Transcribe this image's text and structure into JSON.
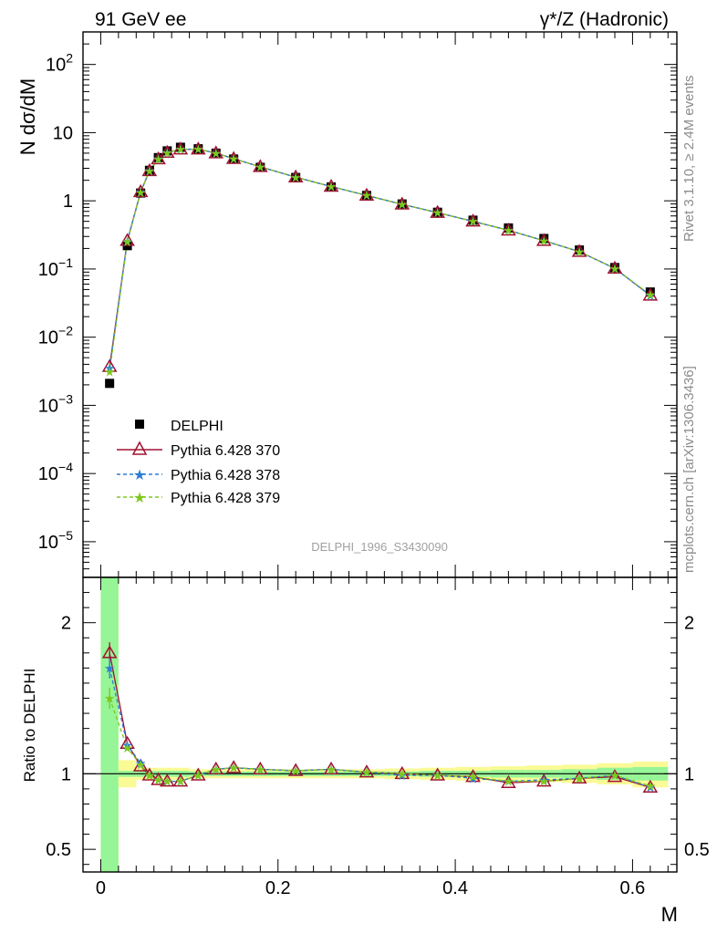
{
  "header": {
    "left_title": "91 GeV ee",
    "right_title": "γ*/Z (Hadronic)"
  },
  "side_text": {
    "rivet": "Rivet 3.1.10, ≥ 2.4M events",
    "mcplots": "mcplots.cern.ch [arXiv:1306.3436]"
  },
  "analysis_label": "DELPHI_1996_S3430090",
  "colors": {
    "data": "#000000",
    "py370": "#a01030",
    "py378": "#2a7fd4",
    "py379": "#7ec81e",
    "band_green": "#96f596",
    "band_yellow": "#fafa96"
  },
  "chart_data": [
    {
      "type": "scatter",
      "ylabel": "N dσ/dM",
      "yscale": "log",
      "ylim": [
        3e-06,
        300
      ],
      "xlim": [
        -0.02,
        0.65
      ],
      "ytick_labels": [
        {
          "value": 100,
          "mant": "10",
          "exp": "2"
        },
        {
          "value": 10,
          "mant": "10",
          "exp": ""
        },
        {
          "value": 1,
          "mant": "1",
          "exp": ""
        },
        {
          "value": 0.1,
          "mant": "10",
          "exp": "−1"
        },
        {
          "value": 0.01,
          "mant": "10",
          "exp": "−2"
        },
        {
          "value": 0.001,
          "mant": "10",
          "exp": "−3"
        },
        {
          "value": 0.0001,
          "mant": "10",
          "exp": "−4"
        },
        {
          "value": 1e-05,
          "mant": "10",
          "exp": "−5"
        }
      ],
      "legend": {
        "position": "left-center",
        "entries": [
          {
            "label": "DELPHI",
            "marker": "square"
          },
          {
            "label": "Pythia 6.428 370",
            "marker": "triangle"
          },
          {
            "label": "Pythia 6.428 378",
            "marker": "star"
          },
          {
            "label": "Pythia 6.428 379",
            "marker": "star"
          }
        ]
      },
      "x": [
        0.01,
        0.03,
        0.045,
        0.055,
        0.065,
        0.075,
        0.09,
        0.11,
        0.13,
        0.15,
        0.18,
        0.22,
        0.26,
        0.3,
        0.34,
        0.38,
        0.42,
        0.46,
        0.5,
        0.54,
        0.58,
        0.62
      ],
      "series": [
        {
          "name": "DELPHI",
          "values": [
            0.0021,
            0.22,
            1.3,
            2.8,
            4.3,
            5.4,
            6.1,
            5.8,
            5.0,
            4.1,
            3.1,
            2.2,
            1.6,
            1.2,
            0.9,
            0.68,
            0.52,
            0.4,
            0.28,
            0.19,
            0.105,
            0.046
          ]
        },
        {
          "name": "Pythia 6.428 370",
          "values": [
            0.0037,
            0.26,
            1.35,
            2.75,
            4.1,
            5.1,
            5.7,
            5.7,
            5.0,
            4.15,
            3.15,
            2.22,
            1.62,
            1.2,
            0.89,
            0.67,
            0.5,
            0.37,
            0.26,
            0.18,
            0.102,
            0.041
          ]
        },
        {
          "name": "Pythia 6.428 378",
          "values": [
            0.0035,
            0.255,
            1.34,
            2.76,
            4.12,
            5.12,
            5.72,
            5.71,
            5.0,
            4.15,
            3.15,
            2.22,
            1.62,
            1.2,
            0.89,
            0.67,
            0.5,
            0.37,
            0.26,
            0.18,
            0.102,
            0.041
          ]
        },
        {
          "name": "Pythia 6.428 379",
          "values": [
            0.0031,
            0.25,
            1.33,
            2.75,
            4.1,
            5.1,
            5.7,
            5.7,
            5.0,
            4.15,
            3.15,
            2.22,
            1.62,
            1.2,
            0.89,
            0.67,
            0.5,
            0.37,
            0.26,
            0.18,
            0.102,
            0.042
          ]
        }
      ]
    },
    {
      "type": "line",
      "ylabel": "Ratio to DELPHI",
      "xlabel": "M",
      "ylim": [
        0.35,
        2.3
      ],
      "xlim": [
        -0.02,
        0.65
      ],
      "yticks": [
        0.5,
        1,
        2
      ],
      "ytick_labels": [
        "0.5",
        "1",
        "2"
      ],
      "xticks": [
        0,
        0.2,
        0.4,
        0.6
      ],
      "xtick_labels": [
        "0",
        "0.2",
        "0.4",
        "0.6"
      ],
      "x": [
        0.01,
        0.03,
        0.045,
        0.055,
        0.065,
        0.075,
        0.09,
        0.11,
        0.13,
        0.15,
        0.18,
        0.22,
        0.26,
        0.3,
        0.34,
        0.38,
        0.42,
        0.46,
        0.5,
        0.54,
        0.58,
        0.62
      ],
      "series": [
        {
          "name": "Pythia 6.428 370",
          "values": [
            1.8,
            1.2,
            1.05,
            0.99,
            0.96,
            0.95,
            0.95,
            0.99,
            1.03,
            1.04,
            1.03,
            1.02,
            1.03,
            1.01,
            1.0,
            0.99,
            0.98,
            0.94,
            0.95,
            0.97,
            0.98,
            0.91
          ]
        },
        {
          "name": "Pythia 6.428 378",
          "values": [
            1.7,
            1.19,
            1.07,
            0.99,
            0.96,
            0.95,
            0.95,
            0.99,
            1.03,
            1.04,
            1.03,
            1.02,
            1.03,
            1.01,
            0.99,
            0.99,
            0.97,
            0.95,
            0.96,
            0.97,
            0.99,
            0.91
          ]
        },
        {
          "name": "Pythia 6.428 379",
          "values": [
            1.5,
            1.17,
            1.06,
            0.99,
            0.96,
            0.95,
            0.95,
            0.99,
            1.03,
            1.04,
            1.03,
            1.02,
            1.03,
            1.01,
            1.0,
            0.99,
            0.98,
            0.95,
            0.95,
            0.97,
            0.99,
            0.92
          ]
        }
      ],
      "band_bins": [
        {
          "x0": 0.0,
          "x1": 0.02,
          "green": [
            0.35,
            2.3
          ],
          "yellow": [
            0.35,
            2.3
          ]
        },
        {
          "x0": 0.02,
          "x1": 0.04,
          "green": [
            0.98,
            1.02
          ],
          "yellow": [
            0.91,
            1.09
          ]
        },
        {
          "x0": 0.04,
          "x1": 0.05,
          "green": [
            0.98,
            1.02
          ],
          "yellow": [
            0.96,
            1.04
          ]
        },
        {
          "x0": 0.05,
          "x1": 0.06,
          "green": [
            0.98,
            1.02
          ],
          "yellow": [
            0.96,
            1.04
          ]
        },
        {
          "x0": 0.06,
          "x1": 0.07,
          "green": [
            0.98,
            1.02
          ],
          "yellow": [
            0.96,
            1.04
          ]
        },
        {
          "x0": 0.07,
          "x1": 0.08,
          "green": [
            0.98,
            1.02
          ],
          "yellow": [
            0.96,
            1.04
          ]
        },
        {
          "x0": 0.08,
          "x1": 0.1,
          "green": [
            0.98,
            1.02
          ],
          "yellow": [
            0.96,
            1.04
          ]
        },
        {
          "x0": 0.1,
          "x1": 0.12,
          "green": [
            0.985,
            1.015
          ],
          "yellow": [
            0.97,
            1.03
          ]
        },
        {
          "x0": 0.12,
          "x1": 0.14,
          "green": [
            0.985,
            1.015
          ],
          "yellow": [
            0.97,
            1.03
          ]
        },
        {
          "x0": 0.14,
          "x1": 0.16,
          "green": [
            0.985,
            1.015
          ],
          "yellow": [
            0.97,
            1.03
          ]
        },
        {
          "x0": 0.16,
          "x1": 0.2,
          "green": [
            0.985,
            1.015
          ],
          "yellow": [
            0.97,
            1.03
          ]
        },
        {
          "x0": 0.2,
          "x1": 0.24,
          "green": [
            0.985,
            1.015
          ],
          "yellow": [
            0.97,
            1.03
          ]
        },
        {
          "x0": 0.24,
          "x1": 0.28,
          "green": [
            0.985,
            1.015
          ],
          "yellow": [
            0.97,
            1.03
          ]
        },
        {
          "x0": 0.28,
          "x1": 0.32,
          "green": [
            0.985,
            1.015
          ],
          "yellow": [
            0.97,
            1.03
          ]
        },
        {
          "x0": 0.32,
          "x1": 0.36,
          "green": [
            0.985,
            1.015
          ],
          "yellow": [
            0.965,
            1.035
          ]
        },
        {
          "x0": 0.36,
          "x1": 0.4,
          "green": [
            0.98,
            1.02
          ],
          "yellow": [
            0.96,
            1.04
          ]
        },
        {
          "x0": 0.4,
          "x1": 0.44,
          "green": [
            0.98,
            1.02
          ],
          "yellow": [
            0.955,
            1.045
          ]
        },
        {
          "x0": 0.44,
          "x1": 0.48,
          "green": [
            0.975,
            1.025
          ],
          "yellow": [
            0.95,
            1.05
          ]
        },
        {
          "x0": 0.48,
          "x1": 0.52,
          "green": [
            0.975,
            1.025
          ],
          "yellow": [
            0.945,
            1.055
          ]
        },
        {
          "x0": 0.52,
          "x1": 0.56,
          "green": [
            0.97,
            1.03
          ],
          "yellow": [
            0.94,
            1.06
          ]
        },
        {
          "x0": 0.56,
          "x1": 0.6,
          "green": [
            0.96,
            1.04
          ],
          "yellow": [
            0.93,
            1.07
          ]
        },
        {
          "x0": 0.6,
          "x1": 0.64,
          "green": [
            0.955,
            1.045
          ],
          "yellow": [
            0.91,
            1.08
          ]
        }
      ],
      "error_bars": [
        {
          "series": "Pythia 6.428 370",
          "index": 0,
          "lo": 1.73,
          "hi": 1.87
        },
        {
          "series": "Pythia 6.428 378",
          "index": 0,
          "lo": 1.63,
          "hi": 1.77
        },
        {
          "series": "Pythia 6.428 379",
          "index": 0,
          "lo": 1.43,
          "hi": 1.57
        }
      ]
    }
  ]
}
